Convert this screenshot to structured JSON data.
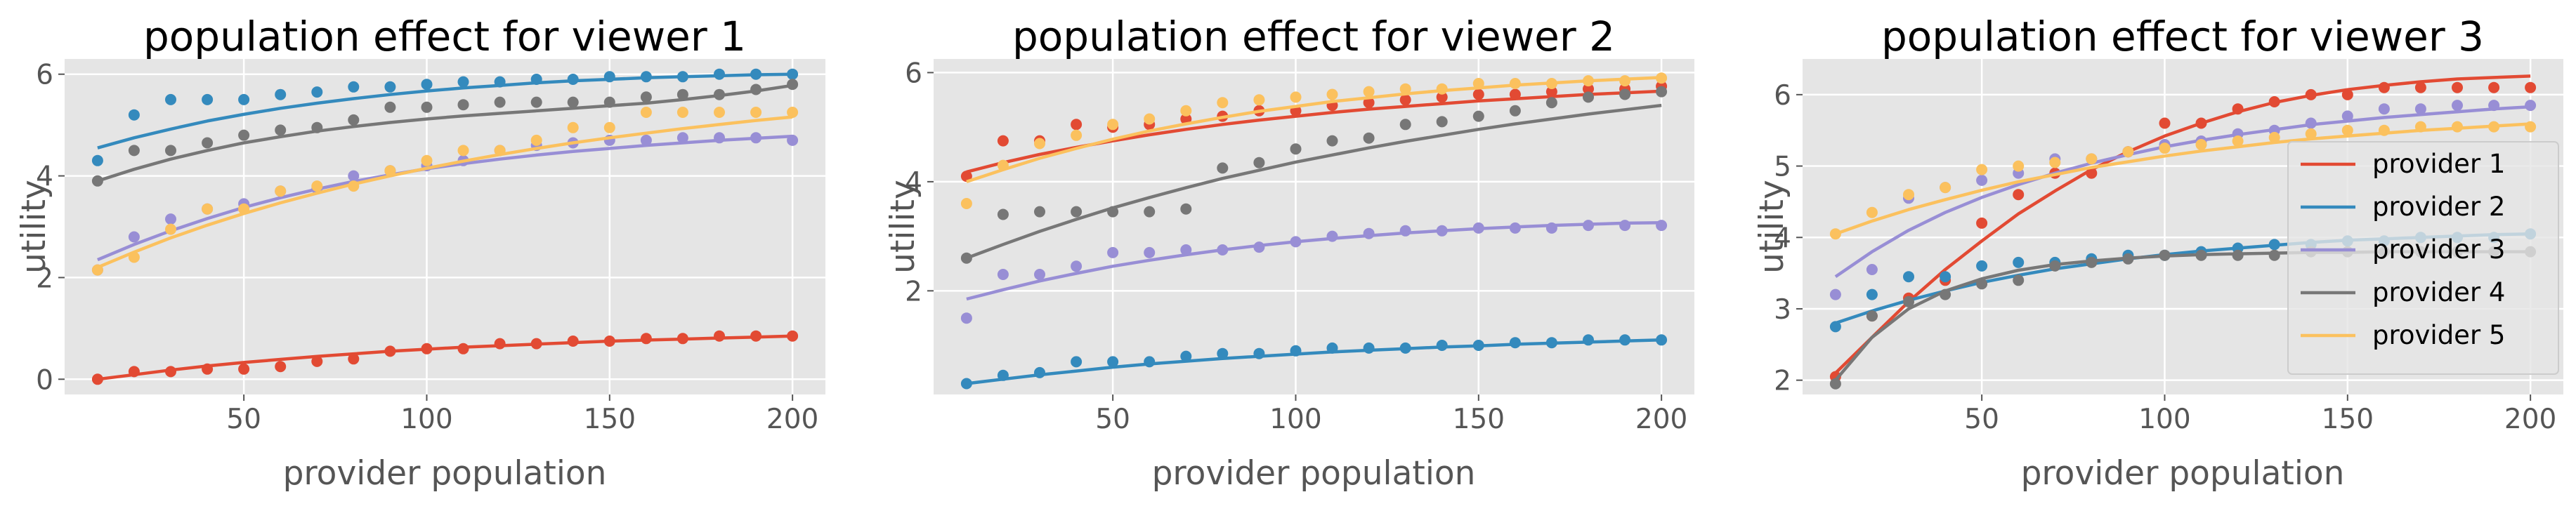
{
  "figure": {
    "xlabel": "provider population",
    "ylabel": "utility",
    "colors": {
      "provider 1": "#E24A33",
      "provider 2": "#348ABD",
      "provider 3": "#988ED5",
      "provider 4": "#777777",
      "provider 5": "#FBC15E"
    }
  },
  "chart_data": [
    {
      "type": "scatter+line",
      "title": "population effect for viewer 1",
      "xlabel": "provider population",
      "ylabel": "utility",
      "xlim": [
        1,
        209
      ],
      "ylim": [
        -0.3,
        6.3
      ],
      "xticks": [
        50,
        100,
        150,
        200
      ],
      "yticks": [
        0,
        2,
        4,
        6
      ],
      "x": [
        10,
        20,
        30,
        40,
        50,
        60,
        70,
        80,
        90,
        100,
        110,
        120,
        130,
        140,
        150,
        160,
        170,
        180,
        190,
        200
      ],
      "series": [
        {
          "name": "provider 1",
          "points": [
            0.0,
            0.15,
            0.15,
            0.2,
            0.2,
            0.25,
            0.35,
            0.4,
            0.55,
            0.6,
            0.6,
            0.7,
            0.7,
            0.75,
            0.75,
            0.8,
            0.8,
            0.85,
            0.85,
            0.85
          ],
          "fit": [
            0.0,
            0.09,
            0.18,
            0.26,
            0.33,
            0.39,
            0.45,
            0.5,
            0.55,
            0.59,
            0.63,
            0.66,
            0.69,
            0.72,
            0.75,
            0.77,
            0.79,
            0.81,
            0.83,
            0.85
          ]
        },
        {
          "name": "provider 2",
          "points": [
            4.3,
            5.2,
            5.5,
            5.5,
            5.5,
            5.6,
            5.65,
            5.75,
            5.75,
            5.8,
            5.85,
            5.85,
            5.9,
            5.9,
            5.95,
            5.95,
            5.95,
            6.0,
            6.0,
            6.0
          ],
          "fit": [
            4.55,
            4.75,
            4.92,
            5.08,
            5.21,
            5.33,
            5.43,
            5.52,
            5.6,
            5.67,
            5.73,
            5.78,
            5.83,
            5.87,
            5.9,
            5.93,
            5.95,
            5.97,
            5.99,
            6.0
          ]
        },
        {
          "name": "provider 3",
          "points": [
            2.15,
            2.8,
            3.15,
            3.35,
            3.45,
            3.7,
            3.75,
            4.0,
            4.1,
            4.2,
            4.3,
            4.5,
            4.6,
            4.65,
            4.7,
            4.7,
            4.75,
            4.75,
            4.75,
            4.7
          ],
          "fit": [
            2.35,
            2.65,
            2.92,
            3.16,
            3.38,
            3.57,
            3.74,
            3.89,
            4.02,
            4.14,
            4.24,
            4.33,
            4.41,
            4.48,
            4.54,
            4.6,
            4.65,
            4.7,
            4.74,
            4.78
          ]
        },
        {
          "name": "provider 4",
          "points": [
            3.9,
            4.5,
            4.5,
            4.65,
            4.8,
            4.9,
            4.95,
            5.1,
            5.35,
            5.35,
            5.4,
            5.45,
            5.45,
            5.45,
            5.45,
            5.55,
            5.6,
            5.6,
            5.7,
            5.8
          ],
          "fit": [
            3.9,
            4.13,
            4.33,
            4.5,
            4.65,
            4.77,
            4.88,
            4.97,
            5.05,
            5.12,
            5.18,
            5.23,
            5.28,
            5.33,
            5.38,
            5.43,
            5.5,
            5.58,
            5.67,
            5.78
          ]
        },
        {
          "name": "provider 5",
          "points": [
            2.15,
            2.4,
            2.95,
            3.35,
            3.35,
            3.7,
            3.8,
            3.8,
            4.1,
            4.3,
            4.5,
            4.5,
            4.7,
            4.95,
            4.95,
            5.25,
            5.25,
            5.25,
            5.25,
            5.25
          ],
          "fit": [
            2.2,
            2.5,
            2.78,
            3.03,
            3.26,
            3.47,
            3.66,
            3.84,
            4.0,
            4.15,
            4.29,
            4.42,
            4.54,
            4.65,
            4.75,
            4.84,
            4.93,
            5.01,
            5.09,
            5.16
          ]
        }
      ]
    },
    {
      "type": "scatter+line",
      "title": "population effect for viewer 2",
      "xlabel": "provider population",
      "ylabel": "utility",
      "xlim": [
        1,
        209
      ],
      "ylim": [
        0.1,
        6.25
      ],
      "xticks": [
        50,
        100,
        150,
        200
      ],
      "yticks": [
        2,
        4,
        6
      ],
      "x": [
        10,
        20,
        30,
        40,
        50,
        60,
        70,
        80,
        90,
        100,
        110,
        120,
        130,
        140,
        150,
        160,
        170,
        180,
        190,
        200
      ],
      "series": [
        {
          "name": "provider 1",
          "points": [
            4.1,
            4.75,
            4.75,
            5.05,
            5.0,
            5.05,
            5.15,
            5.2,
            5.3,
            5.3,
            5.4,
            5.45,
            5.5,
            5.55,
            5.6,
            5.6,
            5.65,
            5.7,
            5.7,
            5.75
          ],
          "fit": [
            4.18,
            4.35,
            4.5,
            4.63,
            4.75,
            4.86,
            4.96,
            5.05,
            5.13,
            5.2,
            5.27,
            5.33,
            5.38,
            5.43,
            5.48,
            5.52,
            5.56,
            5.6,
            5.63,
            5.66
          ]
        },
        {
          "name": "provider 2",
          "points": [
            0.3,
            0.45,
            0.5,
            0.7,
            0.7,
            0.7,
            0.8,
            0.85,
            0.85,
            0.9,
            0.95,
            0.95,
            0.95,
            1.0,
            1.0,
            1.05,
            1.05,
            1.1,
            1.1,
            1.1
          ],
          "fit": [
            0.3,
            0.38,
            0.46,
            0.53,
            0.6,
            0.66,
            0.71,
            0.76,
            0.8,
            0.84,
            0.88,
            0.91,
            0.94,
            0.97,
            0.99,
            1.02,
            1.04,
            1.06,
            1.08,
            1.1
          ]
        },
        {
          "name": "provider 3",
          "points": [
            1.5,
            2.3,
            2.3,
            2.45,
            2.7,
            2.7,
            2.75,
            2.75,
            2.8,
            2.9,
            3.0,
            3.05,
            3.1,
            3.1,
            3.15,
            3.15,
            3.15,
            3.2,
            3.2,
            3.2
          ],
          "fit": [
            1.85,
            2.02,
            2.18,
            2.32,
            2.45,
            2.56,
            2.66,
            2.75,
            2.83,
            2.9,
            2.96,
            3.01,
            3.06,
            3.1,
            3.14,
            3.17,
            3.2,
            3.22,
            3.24,
            3.25
          ]
        },
        {
          "name": "provider 4",
          "points": [
            2.6,
            3.4,
            3.45,
            3.45,
            3.45,
            3.45,
            3.5,
            4.25,
            4.35,
            4.6,
            4.75,
            4.8,
            5.05,
            5.1,
            5.2,
            5.3,
            5.45,
            5.55,
            5.6,
            5.65
          ],
          "fit": [
            2.6,
            2.85,
            3.09,
            3.31,
            3.52,
            3.71,
            3.89,
            4.06,
            4.21,
            4.36,
            4.49,
            4.62,
            4.74,
            4.85,
            4.96,
            5.06,
            5.15,
            5.24,
            5.32,
            5.4
          ]
        },
        {
          "name": "provider 5",
          "points": [
            3.6,
            4.3,
            4.7,
            4.85,
            5.05,
            5.15,
            5.3,
            5.45,
            5.5,
            5.55,
            5.6,
            5.65,
            5.7,
            5.7,
            5.8,
            5.8,
            5.8,
            5.85,
            5.85,
            5.9
          ],
          "fit": [
            4.0,
            4.22,
            4.43,
            4.61,
            4.78,
            4.93,
            5.06,
            5.18,
            5.29,
            5.38,
            5.47,
            5.54,
            5.61,
            5.67,
            5.72,
            5.77,
            5.81,
            5.85,
            5.88,
            5.91
          ]
        }
      ]
    },
    {
      "type": "scatter+line",
      "title": "population effect for viewer 3",
      "xlabel": "provider population",
      "ylabel": "utility",
      "xlim": [
        1,
        209
      ],
      "ylim": [
        1.8,
        6.5
      ],
      "xticks": [
        50,
        100,
        150,
        200
      ],
      "yticks": [
        2,
        3,
        4,
        5,
        6
      ],
      "legend": "right",
      "x": [
        10,
        20,
        30,
        40,
        50,
        60,
        70,
        80,
        90,
        100,
        110,
        120,
        130,
        140,
        150,
        160,
        170,
        180,
        190,
        200
      ],
      "series": [
        {
          "name": "provider 1",
          "points": [
            2.05,
            2.9,
            3.15,
            3.4,
            4.2,
            4.6,
            4.9,
            4.9,
            5.2,
            5.6,
            5.6,
            5.8,
            5.9,
            6.0,
            6.0,
            6.1,
            6.1,
            6.1,
            6.1,
            6.1
          ],
          "fit": [
            2.1,
            2.6,
            3.1,
            3.55,
            3.95,
            4.33,
            4.65,
            4.95,
            5.2,
            5.42,
            5.6,
            5.76,
            5.89,
            5.99,
            6.07,
            6.13,
            6.18,
            6.22,
            6.24,
            6.26
          ]
        },
        {
          "name": "provider 2",
          "points": [
            2.75,
            3.2,
            3.45,
            3.45,
            3.6,
            3.65,
            3.65,
            3.7,
            3.75,
            3.75,
            3.8,
            3.85,
            3.9,
            3.9,
            3.95,
            3.95,
            4.0,
            4.0,
            4.0,
            4.05
          ],
          "fit": [
            2.8,
            2.97,
            3.12,
            3.25,
            3.37,
            3.47,
            3.56,
            3.63,
            3.7,
            3.76,
            3.81,
            3.85,
            3.89,
            3.93,
            3.96,
            3.98,
            4.0,
            4.02,
            4.04,
            4.05
          ]
        },
        {
          "name": "provider 3",
          "points": [
            3.2,
            3.55,
            4.55,
            4.7,
            4.8,
            4.9,
            5.1,
            5.1,
            5.2,
            5.3,
            5.35,
            5.45,
            5.5,
            5.6,
            5.7,
            5.8,
            5.8,
            5.85,
            5.85,
            5.85
          ],
          "fit": [
            3.45,
            3.8,
            4.1,
            4.35,
            4.56,
            4.74,
            4.9,
            5.04,
            5.16,
            5.27,
            5.36,
            5.44,
            5.51,
            5.58,
            5.63,
            5.68,
            5.72,
            5.76,
            5.8,
            5.83
          ]
        },
        {
          "name": "provider 4",
          "points": [
            1.95,
            2.9,
            3.1,
            3.2,
            3.35,
            3.4,
            3.6,
            3.65,
            3.7,
            3.75,
            3.75,
            3.75,
            3.75,
            3.8,
            3.8,
            3.8,
            3.8,
            3.8,
            3.8,
            3.8
          ],
          "fit": [
            2.0,
            2.6,
            3.0,
            3.25,
            3.42,
            3.54,
            3.62,
            3.67,
            3.71,
            3.74,
            3.76,
            3.77,
            3.78,
            3.79,
            3.79,
            3.8,
            3.8,
            3.8,
            3.8,
            3.8
          ]
        },
        {
          "name": "provider 5",
          "points": [
            4.05,
            4.35,
            4.6,
            4.7,
            4.95,
            5.0,
            5.05,
            5.1,
            5.2,
            5.25,
            5.3,
            5.35,
            5.4,
            5.45,
            5.5,
            5.5,
            5.55,
            5.55,
            5.55,
            5.55
          ],
          "fit": [
            4.05,
            4.23,
            4.39,
            4.53,
            4.66,
            4.78,
            4.88,
            4.98,
            5.06,
            5.14,
            5.21,
            5.27,
            5.33,
            5.38,
            5.42,
            5.46,
            5.5,
            5.53,
            5.56,
            5.59
          ]
        }
      ]
    }
  ]
}
